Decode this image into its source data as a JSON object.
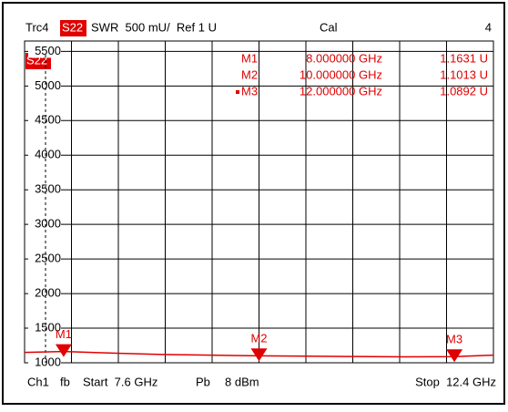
{
  "chart_data": {
    "type": "line",
    "header": {
      "trace": "Trc4",
      "param": "S22",
      "format": "SWR  500 mU/  Ref 1 U",
      "cal": "Cal",
      "number": "4"
    },
    "trace_label": "S22",
    "footer": {
      "channel": "Ch1",
      "fb": "fb",
      "start": "Start  7.6 GHz",
      "pb": "Pb",
      "power": "8 dBm",
      "stop": "Stop  12.4 GHz"
    },
    "xlim": [
      7.6,
      12.4
    ],
    "ylim": [
      1000,
      5650
    ],
    "yticks": [
      1000,
      1500,
      2000,
      2500,
      3000,
      3500,
      4000,
      4500,
      5000,
      5500
    ],
    "grid": true,
    "color": "#e00000",
    "x": [
      7.6,
      8.0,
      8.5,
      9.0,
      9.5,
      10.0,
      10.5,
      11.0,
      11.5,
      12.0,
      12.4
    ],
    "values": [
      1150,
      1163,
      1140,
      1120,
      1110,
      1101,
      1095,
      1090,
      1085,
      1089,
      1110
    ],
    "markers": [
      {
        "name": "M1",
        "x": 8.0,
        "x_label": "8.000000 GHz",
        "value": 1163.1,
        "value_label": "1.1631 U"
      },
      {
        "name": "M2",
        "x": 10.0,
        "x_label": "10.000000 GHz",
        "value": 1101.3,
        "value_label": "1.1013 U"
      },
      {
        "name": "M3",
        "x": 12.0,
        "x_label": "12.000000 GHz",
        "value": 1089.2,
        "value_label": "1.0892 U"
      }
    ]
  }
}
